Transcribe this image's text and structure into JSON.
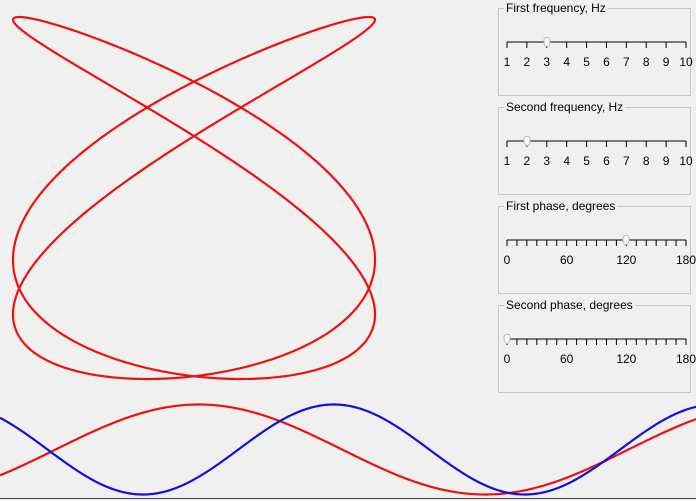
{
  "colors": {
    "curve": "#ee1111",
    "wave1": "#ee1111",
    "wave2": "#1111dd",
    "background": "#f0f0f0"
  },
  "sliders": [
    {
      "id": "freq1",
      "title": "First frequency, Hz",
      "min": 1,
      "max": 10,
      "value": 3,
      "labels": [
        "1",
        "2",
        "3",
        "4",
        "5",
        "6",
        "7",
        "8",
        "9",
        "10"
      ],
      "minor_ticks": 9
    },
    {
      "id": "freq2",
      "title": "Second frequency, Hz",
      "min": 1,
      "max": 10,
      "value": 2,
      "labels": [
        "1",
        "2",
        "3",
        "4",
        "5",
        "6",
        "7",
        "8",
        "9",
        "10"
      ],
      "minor_ticks": 9
    },
    {
      "id": "phase1",
      "title": "First phase, degrees",
      "min": 0,
      "max": 180,
      "value": 120,
      "labels": [
        "0",
        "60",
        "120",
        "180"
      ],
      "minor_ticks": 18
    },
    {
      "id": "phase2",
      "title": "Second phase, degrees",
      "min": 0,
      "max": 180,
      "value": 0,
      "labels": [
        "0",
        "60",
        "120",
        "180"
      ],
      "minor_ticks": 18
    }
  ]
}
